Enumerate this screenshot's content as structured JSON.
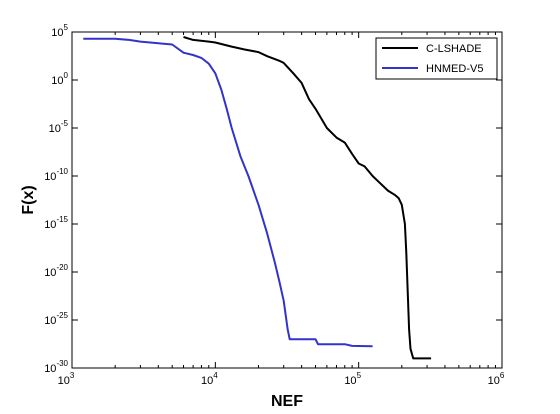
{
  "chart_data": {
    "type": "line",
    "xlabel": "NEF",
    "ylabel": "F(x)",
    "xscale": "log",
    "yscale": "log",
    "xlim": [
      1000,
      1000000
    ],
    "ylim": [
      1e-30,
      100000.0
    ],
    "grid": false,
    "legend_position": "top-right",
    "x_ticks": [
      {
        "base": "10",
        "exp": "3",
        "value": 1000
      },
      {
        "base": "10",
        "exp": "4",
        "value": 10000
      },
      {
        "base": "10",
        "exp": "5",
        "value": 100000
      },
      {
        "base": "10",
        "exp": "6",
        "value": 1000000
      }
    ],
    "y_ticks": [
      {
        "base": "10",
        "exp": "5",
        "value": 100000.0
      },
      {
        "base": "10",
        "exp": "0",
        "value": 1
      },
      {
        "base": "10",
        "exp": "-5",
        "value": 1e-05
      },
      {
        "base": "10",
        "exp": "-10",
        "value": 1e-10
      },
      {
        "base": "10",
        "exp": "-15",
        "value": 1e-15
      },
      {
        "base": "10",
        "exp": "-20",
        "value": 1e-20
      },
      {
        "base": "10",
        "exp": "-25",
        "value": 1e-25
      },
      {
        "base": "10",
        "exp": "-30",
        "value": 1e-30
      }
    ],
    "series": [
      {
        "name": "C-LSHADE",
        "color": "#000000",
        "points": [
          [
            6000,
            30000.0
          ],
          [
            7000,
            15000.0
          ],
          [
            9000,
            10000.0
          ],
          [
            10000,
            8000.0
          ],
          [
            13000,
            3000.0
          ],
          [
            16000,
            1500.0
          ],
          [
            20000,
            800
          ],
          [
            23000,
            300
          ],
          [
            28000,
            100
          ],
          [
            30000,
            60
          ],
          [
            35000,
            5
          ],
          [
            40000,
            0.5
          ],
          [
            45000,
            0.01
          ],
          [
            50000,
            0.001
          ],
          [
            60000,
            1e-05
          ],
          [
            70000,
            1e-06
          ],
          [
            80000,
            3e-07
          ],
          [
            90000,
            2e-08
          ],
          [
            100000,
            2e-09
          ],
          [
            110000,
            1e-09
          ],
          [
            125000,
            1e-10
          ],
          [
            140000,
            2e-11
          ],
          [
            160000,
            3e-12
          ],
          [
            180000,
            1e-12
          ],
          [
            190000,
            5e-13
          ],
          [
            200000,
            1e-13
          ],
          [
            210000,
            1e-15
          ],
          [
            215000,
            1e-18
          ],
          [
            220000,
            1e-22
          ],
          [
            225000,
            1e-26
          ],
          [
            230000,
            1e-28
          ],
          [
            240000,
            1e-29
          ],
          [
            320000,
            1e-29
          ]
        ]
      },
      {
        "name": "HNMED-V5",
        "color": "#3333cc",
        "points": [
          [
            1200,
            20000.0
          ],
          [
            2000,
            20000.0
          ],
          [
            2500,
            15000.0
          ],
          [
            3000,
            10000.0
          ],
          [
            5000,
            5000.0
          ],
          [
            6000,
            700
          ],
          [
            7000,
            400
          ],
          [
            8000,
            200
          ],
          [
            9000,
            50
          ],
          [
            10000,
            5
          ],
          [
            11000,
            0.1
          ],
          [
            12000,
            0.001
          ],
          [
            13000,
            1e-05
          ],
          [
            15000,
            1e-08
          ],
          [
            17000,
            1e-10
          ],
          [
            20000,
            1e-13
          ],
          [
            23000,
            1e-16
          ],
          [
            26000,
            1e-19
          ],
          [
            28000,
            1e-21
          ],
          [
            30000,
            1e-23
          ],
          [
            32000,
            1e-26
          ],
          [
            33000,
            1e-27
          ],
          [
            50000,
            1e-27
          ],
          [
            52000,
            3e-28
          ],
          [
            80000,
            3e-28
          ],
          [
            90000,
            2e-28
          ],
          [
            125000,
            1.8e-28
          ]
        ]
      }
    ]
  }
}
